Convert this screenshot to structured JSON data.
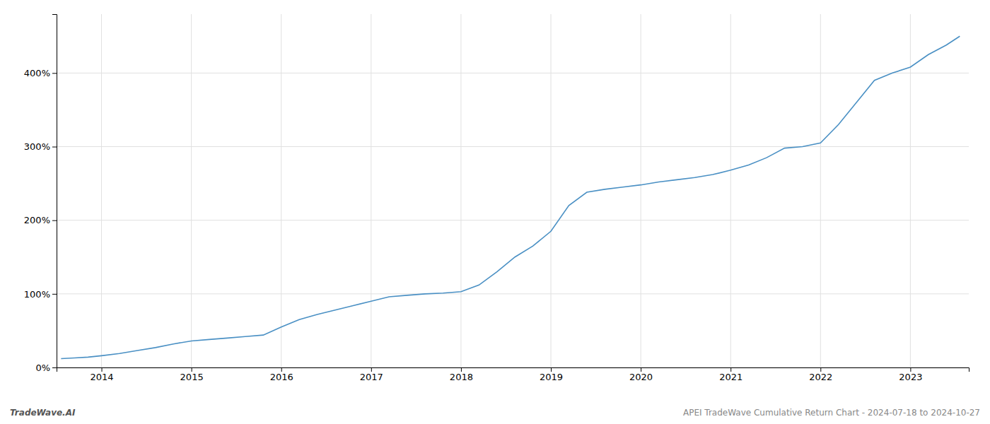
{
  "chart_data": {
    "type": "line",
    "x": [
      2013.55,
      2013.7,
      2013.85,
      2014.0,
      2014.2,
      2014.4,
      2014.6,
      2014.8,
      2015.0,
      2015.2,
      2015.4,
      2015.6,
      2015.8,
      2016.0,
      2016.2,
      2016.4,
      2016.6,
      2016.8,
      2017.0,
      2017.2,
      2017.4,
      2017.6,
      2017.8,
      2018.0,
      2018.2,
      2018.4,
      2018.6,
      2018.8,
      2019.0,
      2019.2,
      2019.4,
      2019.6,
      2019.8,
      2020.0,
      2020.2,
      2020.4,
      2020.6,
      2020.8,
      2021.0,
      2021.2,
      2021.4,
      2021.6,
      2021.8,
      2022.0,
      2022.2,
      2022.4,
      2022.6,
      2022.8,
      2023.0,
      2023.2,
      2023.4,
      2023.55
    ],
    "values": [
      12,
      13,
      14,
      16,
      19,
      23,
      27,
      32,
      36,
      38,
      40,
      42,
      44,
      55,
      65,
      72,
      78,
      84,
      90,
      96,
      98,
      100,
      101,
      103,
      112,
      130,
      150,
      165,
      185,
      220,
      238,
      242,
      245,
      248,
      252,
      255,
      258,
      262,
      268,
      275,
      285,
      298,
      300,
      305,
      330,
      360,
      390,
      400,
      408,
      425,
      438,
      450
    ],
    "color": "#4a90c4",
    "xlim": [
      2013.5,
      2023.65
    ],
    "xticks": [
      2014,
      2015,
      2016,
      2017,
      2018,
      2019,
      2020,
      2021,
      2022,
      2023
    ],
    "ylim": [
      0,
      480
    ],
    "yticks": [
      {
        "value": 0,
        "label": "0%"
      },
      {
        "value": 100,
        "label": "100%"
      },
      {
        "value": 200,
        "label": "200%"
      },
      {
        "value": 300,
        "label": "300%"
      },
      {
        "value": 400,
        "label": "400%"
      }
    ],
    "grid": true,
    "annotations": [
      "TradeWave.AI",
      "APEI TradeWave Cumulative Return Chart - 2024-07-18 to 2024-10-27"
    ]
  }
}
